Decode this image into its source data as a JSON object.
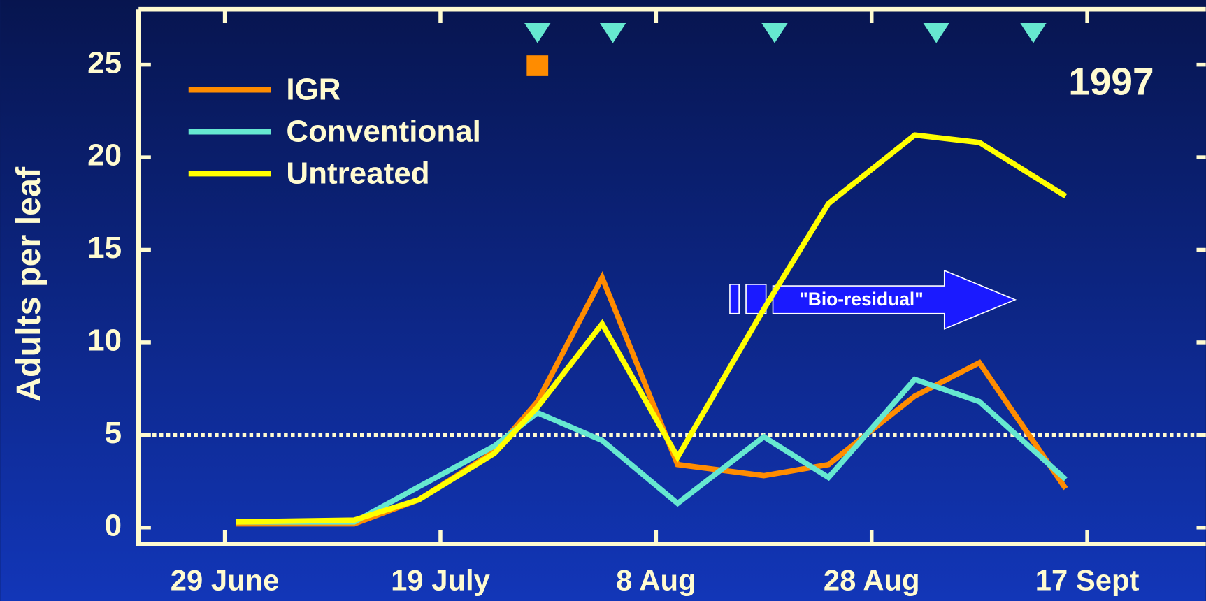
{
  "chart_data": {
    "type": "line",
    "y_label": "Adults per leaf",
    "annotation": "1997",
    "arrow_label": "\"Bio-residual\"",
    "x": [
      "1997-06-30",
      "1997-07-11",
      "1997-07-17",
      "1997-07-24",
      "1997-07-28",
      "1997-08-03",
      "1997-08-10",
      "1997-08-18",
      "1997-08-24",
      "1997-09-01",
      "1997-09-07",
      "1997-09-15"
    ],
    "series": [
      {
        "name": "IGR",
        "color": "#ff8c00",
        "values": [
          0.2,
          0.2,
          1.5,
          4.1,
          6.8,
          13.5,
          3.4,
          2.8,
          3.4,
          7.1,
          8.9,
          2.1
        ]
      },
      {
        "name": "Conventional",
        "color": "#66e8d0",
        "values": [
          0.3,
          0.3,
          2.2,
          4.4,
          6.2,
          4.7,
          1.3,
          4.9,
          2.7,
          8.0,
          6.8,
          2.6
        ]
      },
      {
        "name": "Untreated",
        "color": "#ffff00",
        "values": [
          0.3,
          0.4,
          1.5,
          4.0,
          6.5,
          11.0,
          3.8,
          11.8,
          17.5,
          21.2,
          20.8,
          17.9
        ]
      }
    ],
    "spray_markers": [
      {
        "color": "#66e8d0",
        "dates": [
          "1997-07-28",
          "1997-08-04",
          "1997-08-19",
          "1997-09-03",
          "1997-09-12"
        ]
      },
      {
        "color": "#ff8c00",
        "dates": [
          "1997-07-28"
        ]
      }
    ],
    "threshold": 5,
    "xlim": [
      "1997-06-21",
      "1997-09-28"
    ],
    "xticks": [
      {
        "value": "1997-06-29",
        "label": "29 June"
      },
      {
        "value": "1997-07-19",
        "label": "19 July"
      },
      {
        "value": "1997-08-08",
        "label": "8 Aug"
      },
      {
        "value": "1997-08-28",
        "label": "28 Aug"
      },
      {
        "value": "1997-09-17",
        "label": "17 Sept"
      }
    ],
    "ylim": [
      -0.9,
      28
    ],
    "yticks": [
      0,
      5,
      10,
      15,
      20,
      25
    ],
    "grid": false,
    "legend": "upper left"
  }
}
